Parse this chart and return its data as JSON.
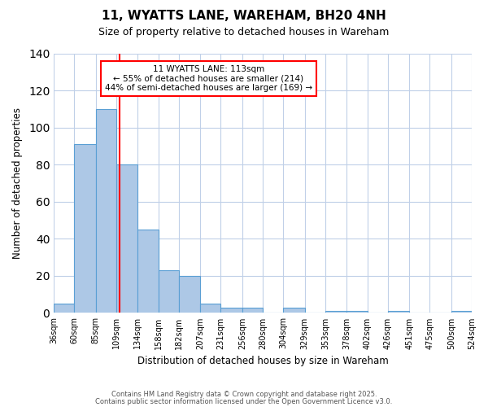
{
  "title": "11, WYATTS LANE, WAREHAM, BH20 4NH",
  "subtitle": "Size of property relative to detached houses in Wareham",
  "xlabel": "Distribution of detached houses by size in Wareham",
  "ylabel": "Number of detached properties",
  "bar_values": [
    5,
    91,
    110,
    80,
    45,
    23,
    20,
    5,
    3,
    3,
    0,
    3,
    0,
    1,
    1,
    0,
    1,
    0,
    0,
    1
  ],
  "bin_edges": [
    36,
    60,
    85,
    109,
    134,
    158,
    182,
    207,
    231,
    256,
    280,
    304,
    329,
    353,
    378,
    402,
    426,
    451,
    475,
    500,
    524
  ],
  "bin_labels": [
    "36sqm",
    "60sqm",
    "85sqm",
    "109sqm",
    "134sqm",
    "158sqm",
    "182sqm",
    "207sqm",
    "231sqm",
    "256sqm",
    "280sqm",
    "304sqm",
    "329sqm",
    "353sqm",
    "378sqm",
    "402sqm",
    "426sqm",
    "451sqm",
    "475sqm",
    "500sqm",
    "524sqm"
  ],
  "bar_color": "#adc8e6",
  "bar_edge_color": "#5a9fd4",
  "vline_x": 113,
  "vline_color": "red",
  "annotation_title": "11 WYATTS LANE: 113sqm",
  "annotation_line1": "← 55% of detached houses are smaller (214)",
  "annotation_line2": "44% of semi-detached houses are larger (169) →",
  "annotation_box_color": "white",
  "annotation_box_edge": "red",
  "ylim": [
    0,
    140
  ],
  "yticks": [
    0,
    20,
    40,
    60,
    80,
    100,
    120,
    140
  ],
  "footer1": "Contains HM Land Registry data © Crown copyright and database right 2025.",
  "footer2": "Contains public sector information licensed under the Open Government Licence v3.0.",
  "background_color": "#ffffff",
  "grid_color": "#c0d0e8"
}
